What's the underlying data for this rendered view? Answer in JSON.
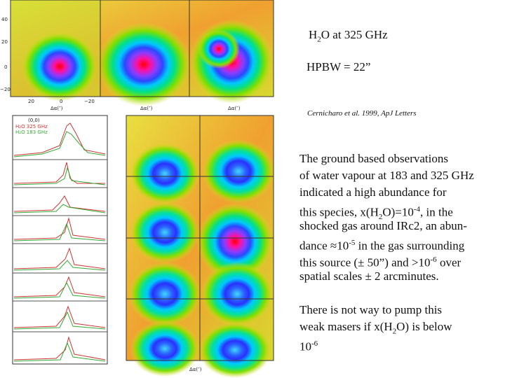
{
  "header": {
    "title": [
      "H",
      {
        "sub": "2"
      },
      "O at 325 GHz"
    ],
    "beam": "HPBW = 22”",
    "citation": "Cernicharo et al. 1999, ApJ Letters"
  },
  "paragraphs": [
    [
      [
        "The ground based observations"
      ],
      [
        "of water vapour at 183 and 325 GHz"
      ],
      [
        "indicated a high abundance for"
      ],
      [
        "this species, x(H",
        {
          "sub": "2"
        },
        "O)=10",
        {
          "sup": "-4"
        },
        ", in the"
      ],
      [
        "shocked gas around IRc2, an abun-"
      ],
      [
        "dance ≈10",
        {
          "sup": "-5"
        },
        " in the gas surrounding"
      ],
      [
        "this source (± 50”) and >10",
        {
          "sup": "-6"
        },
        " over"
      ],
      [
        "spatial scales ± 2 arcminutes."
      ]
    ],
    [
      [
        "There is not way to pump this"
      ],
      [
        "weak masers if x(H",
        {
          "sub": "2"
        },
        "O) is below"
      ],
      [
        "10",
        {
          "sup": "-6"
        }
      ]
    ]
  ],
  "figure": {
    "top_yticks": [
      "40",
      "20",
      "0",
      "−20"
    ],
    "top_xticks": [
      "20",
      "0",
      "−20"
    ],
    "x_label": "Δα(″)",
    "spectra_legend": [
      "(0,0)",
      "H₂O 325 GHz",
      "H₂O 183 GHz"
    ]
  }
}
